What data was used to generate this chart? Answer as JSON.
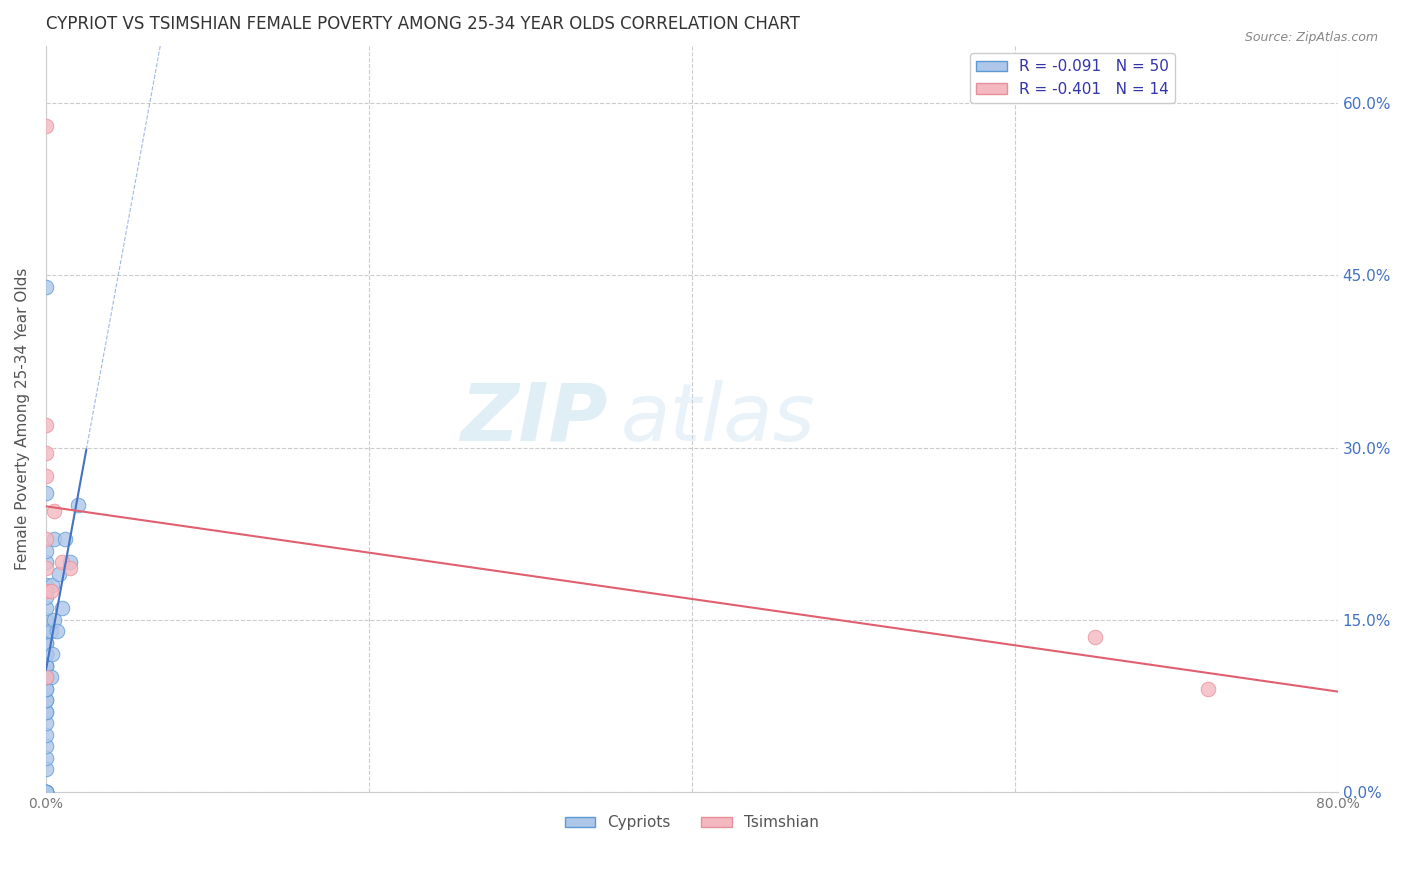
{
  "title": "CYPRIOT VS TSIMSHIAN FEMALE POVERTY AMONG 25-34 YEAR OLDS CORRELATION CHART",
  "source": "Source: ZipAtlas.com",
  "ylabel": "Female Poverty Among 25-34 Year Olds",
  "xlim": [
    0.0,
    0.8
  ],
  "ylim": [
    0.0,
    0.65
  ],
  "xticks": [
    0.0,
    0.2,
    0.4,
    0.6,
    0.8
  ],
  "xticklabels": [
    "0.0%",
    "",
    "",
    "",
    "80.0%"
  ],
  "yticks_left": [
    0.0,
    0.15,
    0.3,
    0.45,
    0.6
  ],
  "yticklabels_left": [
    "",
    "",
    "",
    "",
    ""
  ],
  "yticks_right": [
    0.0,
    0.15,
    0.3,
    0.45,
    0.6
  ],
  "yticklabels_right": [
    "0.0%",
    "15.0%",
    "30.0%",
    "45.0%",
    "60.0%"
  ],
  "cypriot_color": "#aec6e8",
  "tsimshian_color": "#f4b8c1",
  "cypriot_edge": "#5b9bd5",
  "tsimshian_edge": "#e8909a",
  "trend_cypriot_color": "#4472c4",
  "trend_tsimshian_color": "#e06070",
  "background_color": "#ffffff",
  "grid_color": "#cccccc",
  "R_cypriot": -0.091,
  "N_cypriot": 50,
  "R_tsimshian": -0.401,
  "N_tsimshian": 14,
  "legend_label_cypriot": "Cypriots",
  "legend_label_tsimshian": "Tsimshian",
  "watermark_zip": "ZIP",
  "watermark_atlas": "atlas",
  "cypriot_x": [
    0.0,
    0.0,
    0.0,
    0.0,
    0.0,
    0.0,
    0.0,
    0.0,
    0.0,
    0.0,
    0.0,
    0.0,
    0.0,
    0.0,
    0.0,
    0.0,
    0.0,
    0.0,
    0.0,
    0.0,
    0.0,
    0.0,
    0.0,
    0.0,
    0.0,
    0.0,
    0.0,
    0.0,
    0.0,
    0.0,
    0.0,
    0.0,
    0.0,
    0.0,
    0.0,
    0.0,
    0.0,
    0.0,
    0.003,
    0.003,
    0.004,
    0.004,
    0.005,
    0.005,
    0.007,
    0.008,
    0.01,
    0.012,
    0.015,
    0.02
  ],
  "cypriot_y": [
    0.0,
    0.0,
    0.0,
    0.0,
    0.0,
    0.0,
    0.02,
    0.03,
    0.04,
    0.05,
    0.06,
    0.07,
    0.07,
    0.08,
    0.08,
    0.09,
    0.09,
    0.1,
    0.1,
    0.1,
    0.11,
    0.11,
    0.11,
    0.12,
    0.12,
    0.12,
    0.13,
    0.13,
    0.14,
    0.14,
    0.15,
    0.16,
    0.17,
    0.18,
    0.2,
    0.21,
    0.26,
    0.44,
    0.1,
    0.14,
    0.12,
    0.18,
    0.15,
    0.22,
    0.14,
    0.19,
    0.16,
    0.22,
    0.2,
    0.25
  ],
  "tsimshian_x": [
    0.0,
    0.0,
    0.0,
    0.0,
    0.0,
    0.0,
    0.0,
    0.0,
    0.003,
    0.005,
    0.01,
    0.015,
    0.65,
    0.72
  ],
  "tsimshian_y": [
    0.58,
    0.32,
    0.295,
    0.275,
    0.22,
    0.195,
    0.175,
    0.1,
    0.175,
    0.245,
    0.2,
    0.195,
    0.135,
    0.09
  ]
}
